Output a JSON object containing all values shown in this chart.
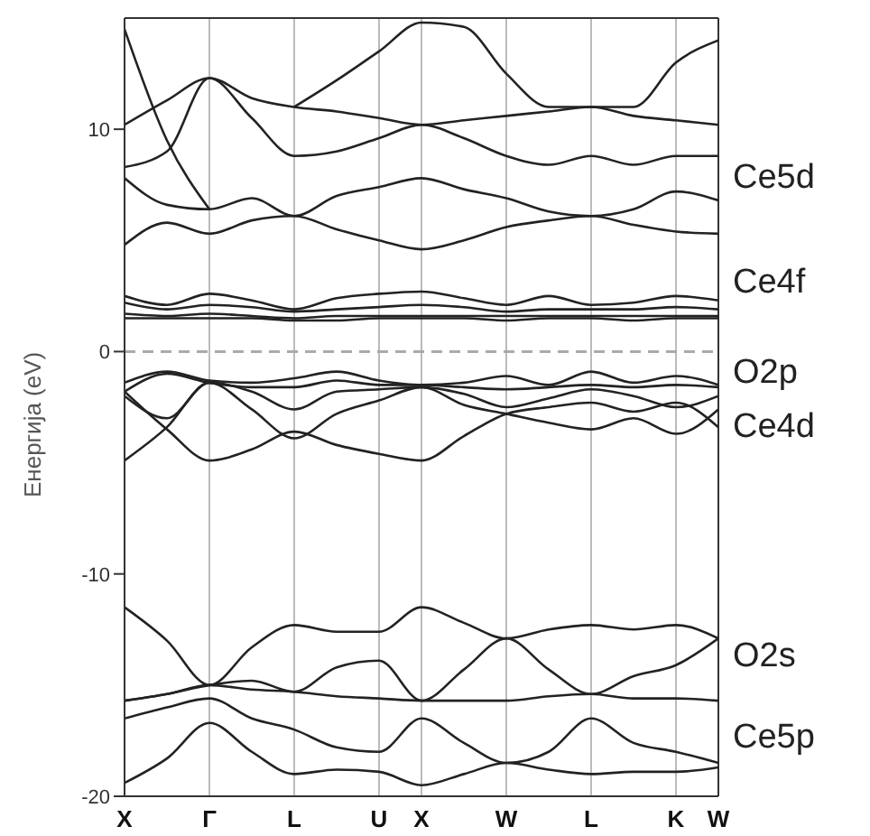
{
  "chart_data": {
    "type": "line",
    "ylabel": "Енергија (eV)",
    "categories": [
      "X",
      null,
      "Γ",
      null,
      "L",
      null,
      "U",
      "X",
      null,
      "W",
      null,
      "L",
      null,
      "K",
      "W"
    ],
    "ylim": [
      -20,
      15
    ],
    "yticks": [
      -20,
      -10,
      0,
      10
    ],
    "grid": "x",
    "marker": "none",
    "line_style": "solid",
    "ref_lines": [
      {
        "axis": "y",
        "value": 0,
        "color": "#aaaaaa",
        "line_style": "dashed"
      }
    ],
    "annotations": [
      "Ce5d",
      "Ce4f",
      "O2p",
      "Ce4d",
      "O2s",
      "Ce5p"
    ],
    "series": [
      {
        "color": "#222222",
        "values": [
          -19.4,
          -18.3,
          -16.7,
          -18.0,
          -19.0,
          -18.8,
          -18.9,
          -19.5,
          -19.0,
          -18.5,
          -18.8,
          -19.0,
          -18.9,
          -18.9,
          -18.7
        ]
      },
      {
        "color": "#222222",
        "values": [
          -16.5,
          -16.0,
          -15.6,
          -16.5,
          -17.0,
          -17.8,
          -18.0,
          -16.5,
          -17.6,
          -18.5,
          -18.0,
          -16.5,
          -17.6,
          -18.0,
          -18.5
        ]
      },
      {
        "color": "#222222",
        "values": [
          -15.7,
          -15.4,
          -15.0,
          -15.2,
          -15.3,
          -15.5,
          -15.6,
          -15.7,
          -15.7,
          -15.7,
          -15.5,
          -15.4,
          -15.6,
          -15.6,
          -15.7
        ]
      },
      {
        "color": "#222222",
        "values": [
          -15.7,
          -15.4,
          -15.0,
          -14.8,
          -15.3,
          -14.2,
          -13.9,
          -15.7,
          -14.3,
          -12.9,
          -14.3,
          -15.4,
          -14.6,
          -14.1,
          -12.9
        ]
      },
      {
        "color": "#222222",
        "values": [
          -11.5,
          -13.0,
          -15.0,
          -13.3,
          -12.3,
          -12.6,
          -12.6,
          -11.5,
          -12.2,
          -12.9,
          -12.5,
          -12.3,
          -12.5,
          -12.3,
          -12.9
        ]
      },
      {
        "color": "#222222",
        "values": [
          -1.4,
          -0.9,
          -1.3,
          -1.4,
          -1.2,
          -0.9,
          -1.3,
          -1.5,
          -1.4,
          -1.1,
          -1.5,
          -0.9,
          -1.4,
          -1.1,
          -1.5
        ]
      },
      {
        "color": "#222222",
        "values": [
          -1.8,
          -1.0,
          -1.4,
          -1.6,
          -1.6,
          -1.3,
          -1.5,
          -1.5,
          -1.6,
          -1.7,
          -1.6,
          -1.5,
          -1.6,
          -1.5,
          -1.6
        ]
      },
      {
        "color": "#222222",
        "values": [
          -2.0,
          -3.0,
          -1.4,
          -1.8,
          -2.6,
          -1.8,
          -1.7,
          -1.6,
          -1.9,
          -2.5,
          -2.1,
          -1.7,
          -2.0,
          -2.5,
          -2.0
        ]
      },
      {
        "color": "#222222",
        "values": [
          -4.9,
          -3.4,
          -1.4,
          -2.6,
          -3.9,
          -2.8,
          -2.2,
          -1.6,
          -2.4,
          -2.8,
          -3.2,
          -3.5,
          -3.0,
          -3.7,
          -2.6
        ]
      },
      {
        "color": "#222222",
        "values": [
          -1.8,
          -3.5,
          -4.9,
          -4.4,
          -3.6,
          -4.2,
          -4.6,
          -4.9,
          -3.8,
          -2.8,
          -2.5,
          -2.3,
          -2.7,
          -2.3,
          -3.4
        ]
      },
      {
        "color": "#222222",
        "values": [
          2.5,
          2.1,
          2.6,
          2.3,
          1.9,
          2.4,
          2.6,
          2.7,
          2.4,
          2.1,
          2.5,
          2.1,
          2.2,
          2.5,
          2.3
        ]
      },
      {
        "color": "#222222",
        "values": [
          2.2,
          1.9,
          2.1,
          2.0,
          1.8,
          1.9,
          2.0,
          2.1,
          2.0,
          1.8,
          1.9,
          1.9,
          1.9,
          2.0,
          1.9
        ]
      },
      {
        "color": "#222222",
        "values": [
          1.7,
          1.6,
          1.7,
          1.6,
          1.5,
          1.6,
          1.6,
          1.6,
          1.6,
          1.6,
          1.6,
          1.6,
          1.6,
          1.6,
          1.6
        ]
      },
      {
        "color": "#222222",
        "values": [
          1.5,
          1.5,
          1.5,
          1.5,
          1.4,
          1.4,
          1.5,
          1.5,
          1.5,
          1.4,
          1.5,
          1.5,
          1.4,
          1.5,
          1.5
        ]
      },
      {
        "color": "#222222",
        "values": [
          4.8,
          5.8,
          5.3,
          5.9,
          6.1,
          5.5,
          5.0,
          4.6,
          5.0,
          5.6,
          5.9,
          6.1,
          5.7,
          5.4,
          5.3
        ]
      },
      {
        "color": "#222222",
        "values": [
          7.8,
          6.6,
          6.4,
          6.9,
          6.1,
          7.0,
          7.4,
          7.8,
          7.3,
          6.9,
          6.3,
          6.1,
          6.4,
          7.2,
          6.8
        ]
      },
      {
        "color": "#222222",
        "values": [
          8.3,
          9.0,
          12.3,
          10.5,
          8.8,
          9.0,
          9.6,
          10.2,
          9.6,
          8.8,
          8.4,
          8.8,
          8.4,
          8.8,
          8.8
        ]
      },
      {
        "color": "#222222",
        "values": [
          10.2,
          11.3,
          12.3,
          11.4,
          11.0,
          10.8,
          10.5,
          10.2,
          10.4,
          10.6,
          10.8,
          11.0,
          10.6,
          10.4,
          10.2
        ]
      },
      {
        "color": "#222222",
        "values": [
          null,
          null,
          null,
          null,
          11.0,
          12.2,
          13.5,
          14.8,
          14.6,
          12.5,
          11.0,
          11.0,
          11.0,
          13.0,
          14.0
        ]
      },
      {
        "color": "#222222",
        "values": [
          14.5,
          9.5,
          6.4,
          null,
          null,
          null,
          null,
          null,
          null,
          null,
          null,
          null,
          null,
          null,
          null
        ]
      }
    ]
  }
}
